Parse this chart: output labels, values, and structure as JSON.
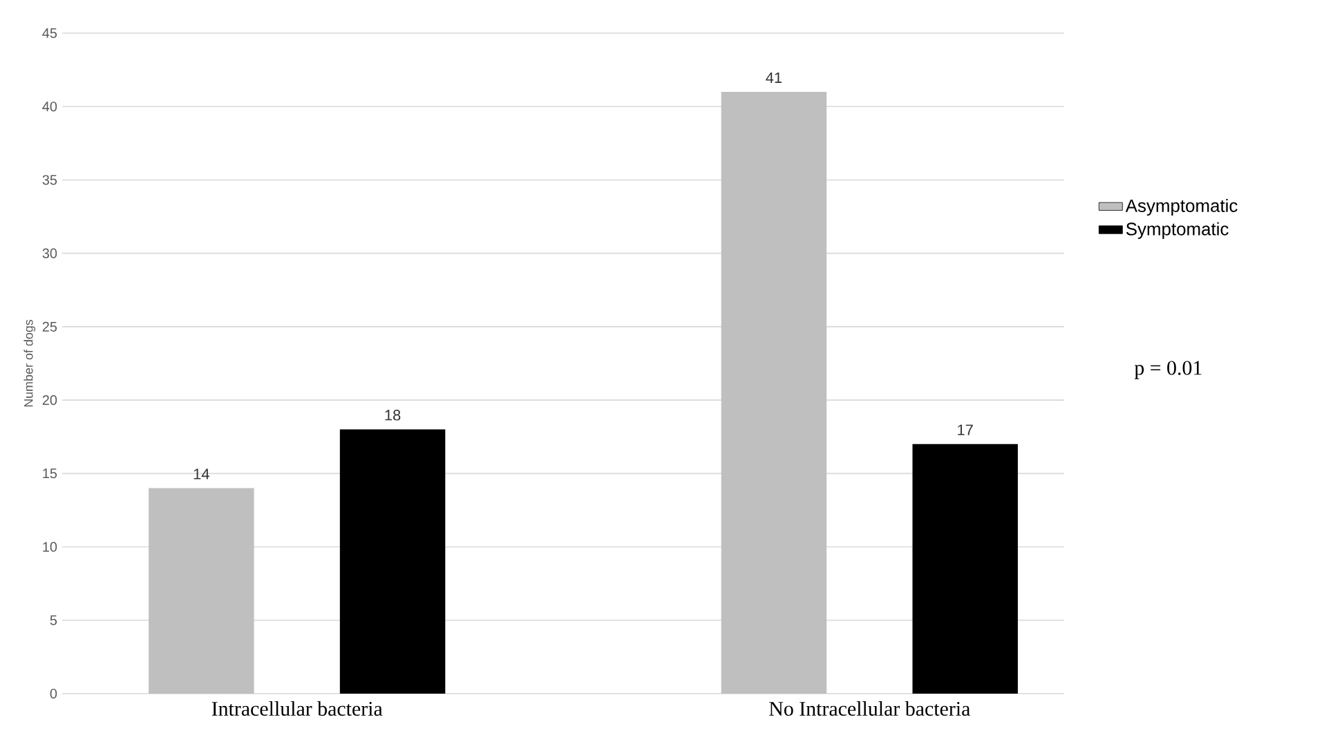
{
  "chart_data": {
    "type": "bar",
    "categories": [
      "Intracellular bacteria",
      "No Intracellular bacteria"
    ],
    "ylabel": "Number of dogs",
    "series": [
      {
        "name": "Asymptomatic",
        "color": "#bfbfbf",
        "values": [
          14,
          41
        ]
      },
      {
        "name": "Symptomatic",
        "color": "#000000",
        "values": [
          18,
          17
        ]
      }
    ],
    "ylim": [
      0,
      45
    ],
    "yticks": [
      0,
      5,
      10,
      15,
      20,
      25,
      30,
      35,
      40,
      45
    ],
    "grid": "y",
    "legend": "right",
    "data_labels": true,
    "annotations": [
      "p = 0.01"
    ]
  }
}
